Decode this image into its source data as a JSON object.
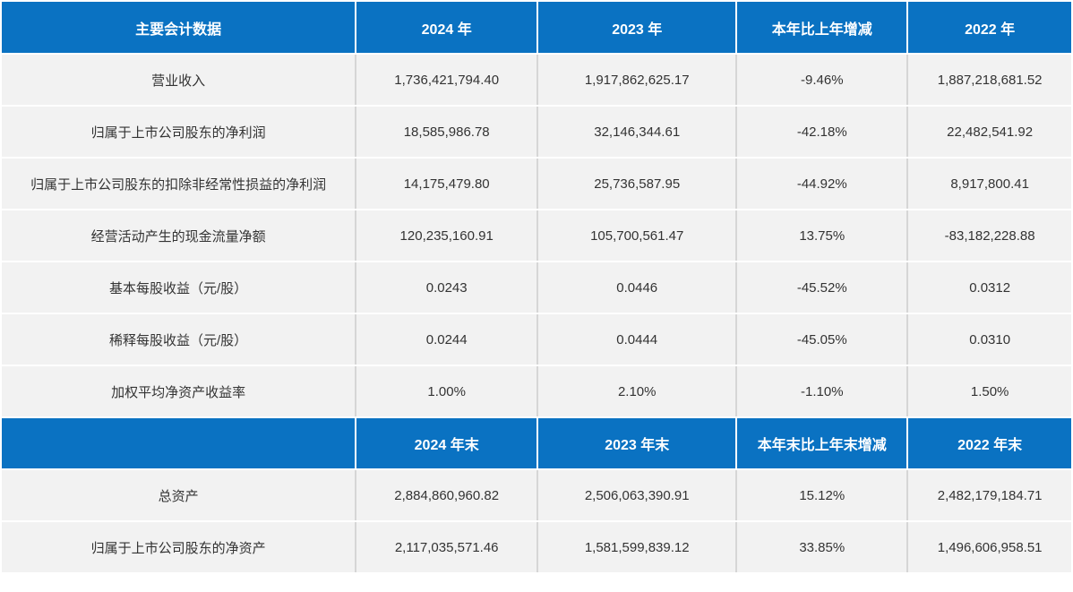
{
  "table": {
    "name": "主要会计数据表",
    "sections": [
      {
        "headers": [
          "主要会计数据",
          "2024 年",
          "2023 年",
          "本年比上年增减",
          "2022 年"
        ],
        "rows": [
          [
            "营业收入",
            "1,736,421,794.40",
            "1,917,862,625.17",
            "-9.46%",
            "1,887,218,681.52"
          ],
          [
            "归属于上市公司股东的净利润",
            "18,585,986.78",
            "32,146,344.61",
            "-42.18%",
            "22,482,541.92"
          ],
          [
            "归属于上市公司股东的扣除非经常性损益的净利润",
            "14,175,479.80",
            "25,736,587.95",
            "-44.92%",
            "8,917,800.41"
          ],
          [
            "经营活动产生的现金流量净额",
            "120,235,160.91",
            "105,700,561.47",
            "13.75%",
            "-83,182,228.88"
          ],
          [
            "基本每股收益（元/股）",
            "0.0243",
            "0.0446",
            "-45.52%",
            "0.0312"
          ],
          [
            "稀释每股收益（元/股）",
            "0.0244",
            "0.0444",
            "-45.05%",
            "0.0310"
          ],
          [
            "加权平均净资产收益率",
            "1.00%",
            "2.10%",
            "-1.10%",
            "1.50%"
          ]
        ]
      },
      {
        "headers": [
          "",
          "2024 年末",
          "2023 年末",
          "本年末比上年末增减",
          "2022 年末"
        ],
        "rows": [
          [
            "总资产",
            "2,884,860,960.82",
            "2,506,063,390.91",
            "15.12%",
            "2,482,179,184.71"
          ],
          [
            "归属于上市公司股东的净资产",
            "2,117,035,571.46",
            "1,581,599,839.12",
            "33.85%",
            "1,496,606,958.51"
          ]
        ]
      }
    ]
  },
  "colors": {
    "header_bg": "#0a72c2",
    "header_text": "#ffffff",
    "row_bg": "#f2f2f2",
    "body_text": "#333333",
    "divider": "#d6d6d6"
  }
}
